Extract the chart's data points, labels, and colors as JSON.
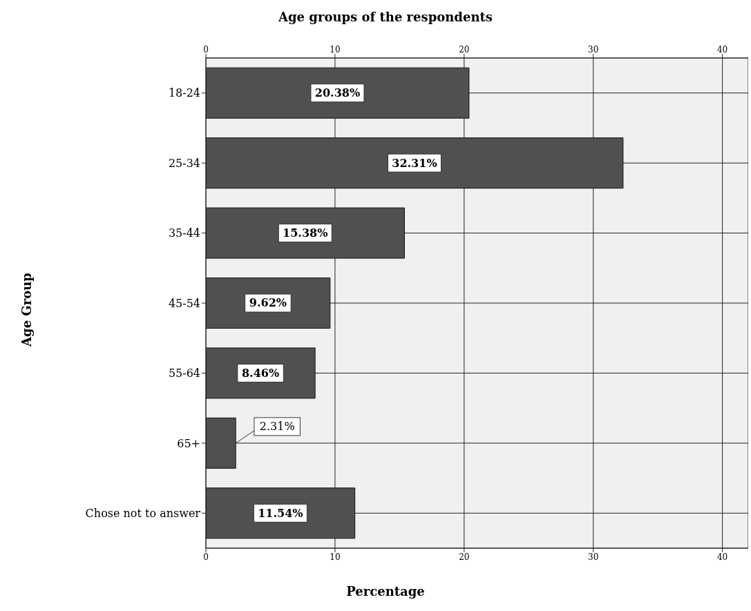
{
  "chart_data": {
    "type": "bar",
    "orientation": "horizontal",
    "title": "Age groups of the respondents",
    "xlabel": "Percentage",
    "ylabel": "Age Group",
    "categories": [
      "18-24",
      "25-34",
      "35-44",
      "45-54",
      "55-64",
      "65+",
      "Chose not to answer"
    ],
    "values": [
      20.38,
      32.31,
      15.38,
      9.62,
      8.46,
      2.31,
      11.54
    ],
    "value_labels": [
      "20.38%",
      "32.31%",
      "15.38%",
      "9.62%",
      "8.46%",
      "2.31%",
      "11.54%"
    ],
    "color": "#505050",
    "xlim": [
      0,
      42
    ],
    "xticks": [
      0,
      10,
      20,
      30,
      40
    ],
    "x2lim": [
      0,
      42
    ],
    "x2ticks": [
      0,
      10,
      20,
      30,
      40
    ],
    "grid": true
  }
}
